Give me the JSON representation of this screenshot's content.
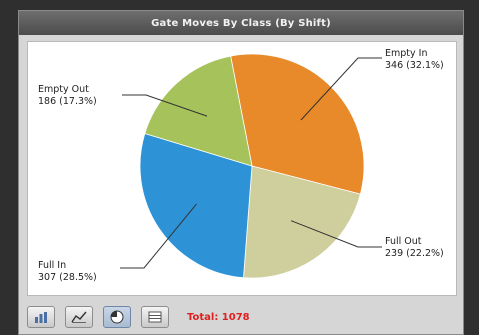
{
  "window": {
    "title": "Gate Moves By Class (By Shift)"
  },
  "chart_data": {
    "type": "pie",
    "title": "Gate Moves By Class (By Shift)",
    "slices": [
      {
        "label": "Empty In",
        "value": 346,
        "percent": "32.1%",
        "color": "#e8892a"
      },
      {
        "label": "Full Out",
        "value": 239,
        "percent": "22.2%",
        "color": "#cfcf9e"
      },
      {
        "label": "Full In",
        "value": 307,
        "percent": "28.5%",
        "color": "#2e93d6"
      },
      {
        "label": "Empty Out",
        "value": 186,
        "percent": "17.3%",
        "color": "#a6c25a"
      }
    ]
  },
  "toolbar": {
    "buttons": [
      {
        "name": "bar-chart-button",
        "icon": "bar-chart-icon",
        "active": false
      },
      {
        "name": "line-chart-button",
        "icon": "line-chart-icon",
        "active": false
      },
      {
        "name": "pie-chart-button",
        "icon": "pie-chart-icon",
        "active": true
      },
      {
        "name": "table-view-button",
        "icon": "table-icon",
        "active": false
      }
    ],
    "total_label": "Total: 1078"
  }
}
